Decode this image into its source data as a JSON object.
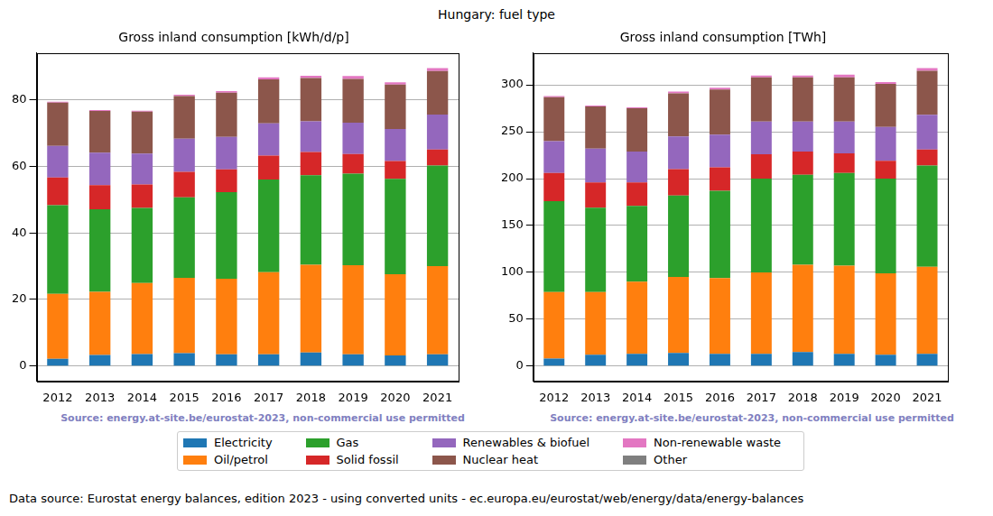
{
  "title": "Hungary: fuel type",
  "footnote": "Data source: Eurostat energy balances, edition 2023 - using converted units - ec.europa.eu/eurostat/web/energy/data/energy-balances",
  "chart_data": [
    {
      "type": "bar",
      "title": "Gross inland consumption [kWh/d/p]",
      "annotation": "Source: energy.at-site.be/eurostat-2023, non-commercial use permitted",
      "stacked": true,
      "grid": true,
      "legend": "bottom",
      "categories": [
        "2012",
        "2013",
        "2014",
        "2015",
        "2016",
        "2017",
        "2018",
        "2019",
        "2020",
        "2021"
      ],
      "ylim": [
        -4.5,
        94
      ],
      "yticks": [
        0,
        20,
        40,
        60,
        80
      ],
      "series": [
        {
          "name": "Electricity",
          "color": "#1f77b4",
          "values": [
            2.2,
            3.3,
            3.6,
            3.9,
            3.5,
            3.5,
            4.1,
            3.5,
            3.2,
            3.5
          ]
        },
        {
          "name": "Oil/petrol",
          "color": "#ff7f0e",
          "values": [
            19.5,
            19.0,
            21.3,
            22.6,
            22.7,
            24.7,
            26.3,
            26.8,
            24.4,
            26.5
          ]
        },
        {
          "name": "Gas",
          "color": "#2ca02c",
          "values": [
            26.6,
            24.8,
            22.6,
            24.2,
            26.0,
            27.8,
            26.9,
            27.5,
            28.6,
            30.2
          ]
        },
        {
          "name": "Solid fossil",
          "color": "#d62728",
          "values": [
            8.3,
            7.2,
            7.0,
            7.6,
            6.9,
            7.2,
            7.0,
            5.9,
            5.4,
            4.8
          ]
        },
        {
          "name": "Renewables & biofuel",
          "color": "#9467bd",
          "values": [
            9.5,
            9.8,
            9.3,
            10.0,
            9.7,
            9.7,
            9.2,
            9.4,
            9.6,
            10.5
          ]
        },
        {
          "name": "Nuclear heat",
          "color": "#8c564b",
          "values": [
            13.0,
            12.5,
            12.6,
            12.8,
            13.3,
            13.2,
            13.0,
            13.1,
            13.3,
            13.1
          ]
        },
        {
          "name": "Non-renewable waste",
          "color": "#e377c2",
          "values": [
            0.3,
            0.3,
            0.3,
            0.4,
            0.5,
            0.6,
            0.7,
            0.9,
            0.7,
            0.9
          ]
        },
        {
          "name": "Other",
          "color": "#7f7f7f",
          "values": [
            0,
            0,
            0,
            0,
            0,
            0,
            0,
            0,
            0,
            0
          ]
        }
      ]
    },
    {
      "type": "bar",
      "title": "Gross inland consumption [TWh]",
      "annotation": "Source: energy.at-site.be/eurostat-2023, non-commercial use permitted",
      "stacked": true,
      "grid": true,
      "legend": "bottom",
      "categories": [
        "2012",
        "2013",
        "2014",
        "2015",
        "2016",
        "2017",
        "2018",
        "2019",
        "2020",
        "2021"
      ],
      "ylim": [
        -16,
        334
      ],
      "yticks": [
        0,
        50,
        100,
        150,
        200,
        250,
        300
      ],
      "series": [
        {
          "name": "Electricity",
          "color": "#1f77b4",
          "values": [
            8,
            12,
            13,
            14,
            13,
            13,
            15,
            13,
            12,
            13
          ]
        },
        {
          "name": "Oil/petrol",
          "color": "#ff7f0e",
          "values": [
            71,
            67,
            77,
            81,
            81,
            87,
            93,
            94,
            87,
            93
          ]
        },
        {
          "name": "Gas",
          "color": "#2ca02c",
          "values": [
            97,
            90,
            81,
            87,
            93,
            100,
            96,
            99,
            101,
            108
          ]
        },
        {
          "name": "Solid fossil",
          "color": "#d62728",
          "values": [
            30,
            27,
            25,
            28,
            25,
            26,
            25,
            21,
            19,
            17
          ]
        },
        {
          "name": "Renewables & biofuel",
          "color": "#9467bd",
          "values": [
            34,
            36,
            33,
            35,
            35,
            35,
            32,
            34,
            36,
            37
          ]
        },
        {
          "name": "Nuclear heat",
          "color": "#8c564b",
          "values": [
            47,
            45,
            46,
            46,
            48,
            47,
            47,
            47,
            46,
            47
          ]
        },
        {
          "name": "Non-renewable waste",
          "color": "#e377c2",
          "values": [
            1,
            1,
            1,
            2,
            2,
            2,
            2,
            3,
            2,
            3
          ]
        },
        {
          "name": "Other",
          "color": "#7f7f7f",
          "values": [
            0,
            0,
            0,
            0,
            0,
            0,
            0,
            0,
            0,
            0
          ]
        }
      ]
    }
  ]
}
